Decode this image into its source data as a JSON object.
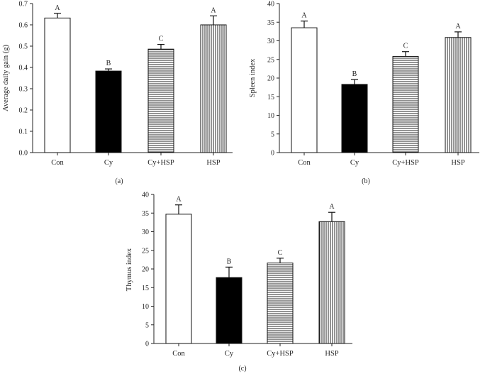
{
  "chart_data": [
    {
      "type": "bar",
      "panel_label": "(a)",
      "ylabel": "Average daily gain (g)",
      "categories": [
        "Con",
        "Cy",
        "Cy+HSP",
        "HSP"
      ],
      "values": [
        0.632,
        0.383,
        0.486,
        0.6
      ],
      "errors": [
        0.022,
        0.01,
        0.022,
        0.042
      ],
      "significance": [
        "A",
        "B",
        "C",
        "A"
      ],
      "ylim": [
        0,
        0.7
      ],
      "yticks": [
        "0.0",
        "0.1",
        "0.2",
        "0.3",
        "0.4",
        "0.5",
        "0.6",
        "0.7"
      ],
      "bar_fills": [
        "white",
        "black",
        "horizontal-lines",
        "vertical-lines"
      ]
    },
    {
      "type": "bar",
      "panel_label": "(b)",
      "ylabel": "Spleen index",
      "categories": [
        "Con",
        "Cy",
        "Cy+HSP",
        "HSP"
      ],
      "values": [
        33.5,
        18.3,
        25.8,
        30.9
      ],
      "errors": [
        1.8,
        1.3,
        1.3,
        1.5
      ],
      "significance": [
        "A",
        "B",
        "C",
        "A"
      ],
      "ylim": [
        0,
        40
      ],
      "yticks": [
        "0",
        "5",
        "10",
        "15",
        "20",
        "25",
        "30",
        "35",
        "40"
      ],
      "bar_fills": [
        "white",
        "black",
        "horizontal-lines",
        "vertical-lines"
      ]
    },
    {
      "type": "bar",
      "panel_label": "(c)",
      "ylabel": "Thymus index",
      "categories": [
        "Con",
        "Cy",
        "Cy+HSP",
        "HSP"
      ],
      "values": [
        34.7,
        17.7,
        21.6,
        32.7
      ],
      "errors": [
        2.5,
        2.8,
        1.3,
        2.5
      ],
      "significance": [
        "A",
        "B",
        "C",
        "A"
      ],
      "ylim": [
        0,
        40
      ],
      "yticks": [
        "0",
        "5",
        "10",
        "15",
        "20",
        "25",
        "30",
        "35",
        "40"
      ],
      "bar_fills": [
        "white",
        "black",
        "horizontal-lines",
        "vertical-lines"
      ]
    }
  ]
}
